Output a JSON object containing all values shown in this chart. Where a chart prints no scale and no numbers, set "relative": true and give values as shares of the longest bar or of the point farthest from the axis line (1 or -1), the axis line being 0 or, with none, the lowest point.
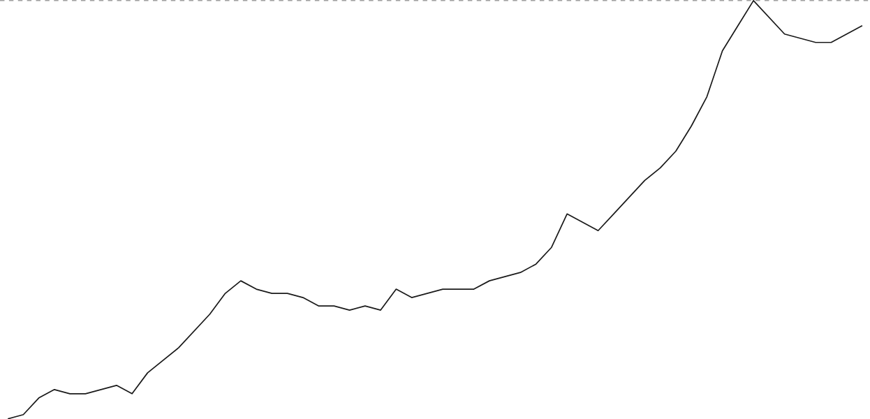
{
  "chart_data": {
    "type": "line",
    "relative": true,
    "color": "#1a1a1a",
    "marker": "none",
    "line_style": "solid",
    "categories": [
      null,
      null,
      null,
      null,
      null,
      null,
      null,
      null,
      null,
      null,
      null,
      null,
      null,
      null,
      null,
      null,
      null,
      null,
      null,
      null,
      null,
      null,
      null,
      null,
      null,
      null,
      null,
      null,
      null,
      null,
      null,
      null,
      null,
      null,
      null,
      null,
      null,
      null,
      null,
      null,
      null,
      null,
      null,
      null,
      null,
      null,
      null,
      null,
      null,
      null,
      null,
      null,
      null,
      null,
      null,
      null
    ],
    "values": [
      0,
      0.01,
      0.05,
      0.07,
      0.06,
      0.06,
      0.07,
      0.08,
      0.06,
      0.11,
      0.14,
      0.17,
      0.21,
      0.25,
      0.3,
      0.33,
      0.31,
      0.3,
      0.3,
      0.29,
      0.27,
      0.27,
      0.26,
      0.27,
      0.26,
      0.31,
      0.29,
      0.3,
      0.31,
      0.31,
      0.31,
      0.33,
      0.34,
      0.35,
      0.37,
      0.41,
      0.49,
      0.47,
      0.45,
      0.49,
      0.53,
      0.57,
      0.6,
      0.64,
      0.7,
      0.77,
      0.88,
      0.94,
      1,
      0.96,
      0.92,
      0.91,
      0.9,
      0.9,
      0.92,
      0.94
    ],
    "ref_lines": [
      {
        "axis": "y",
        "value": 1,
        "color": "#555555",
        "line_style": "dashed"
      }
    ]
  }
}
